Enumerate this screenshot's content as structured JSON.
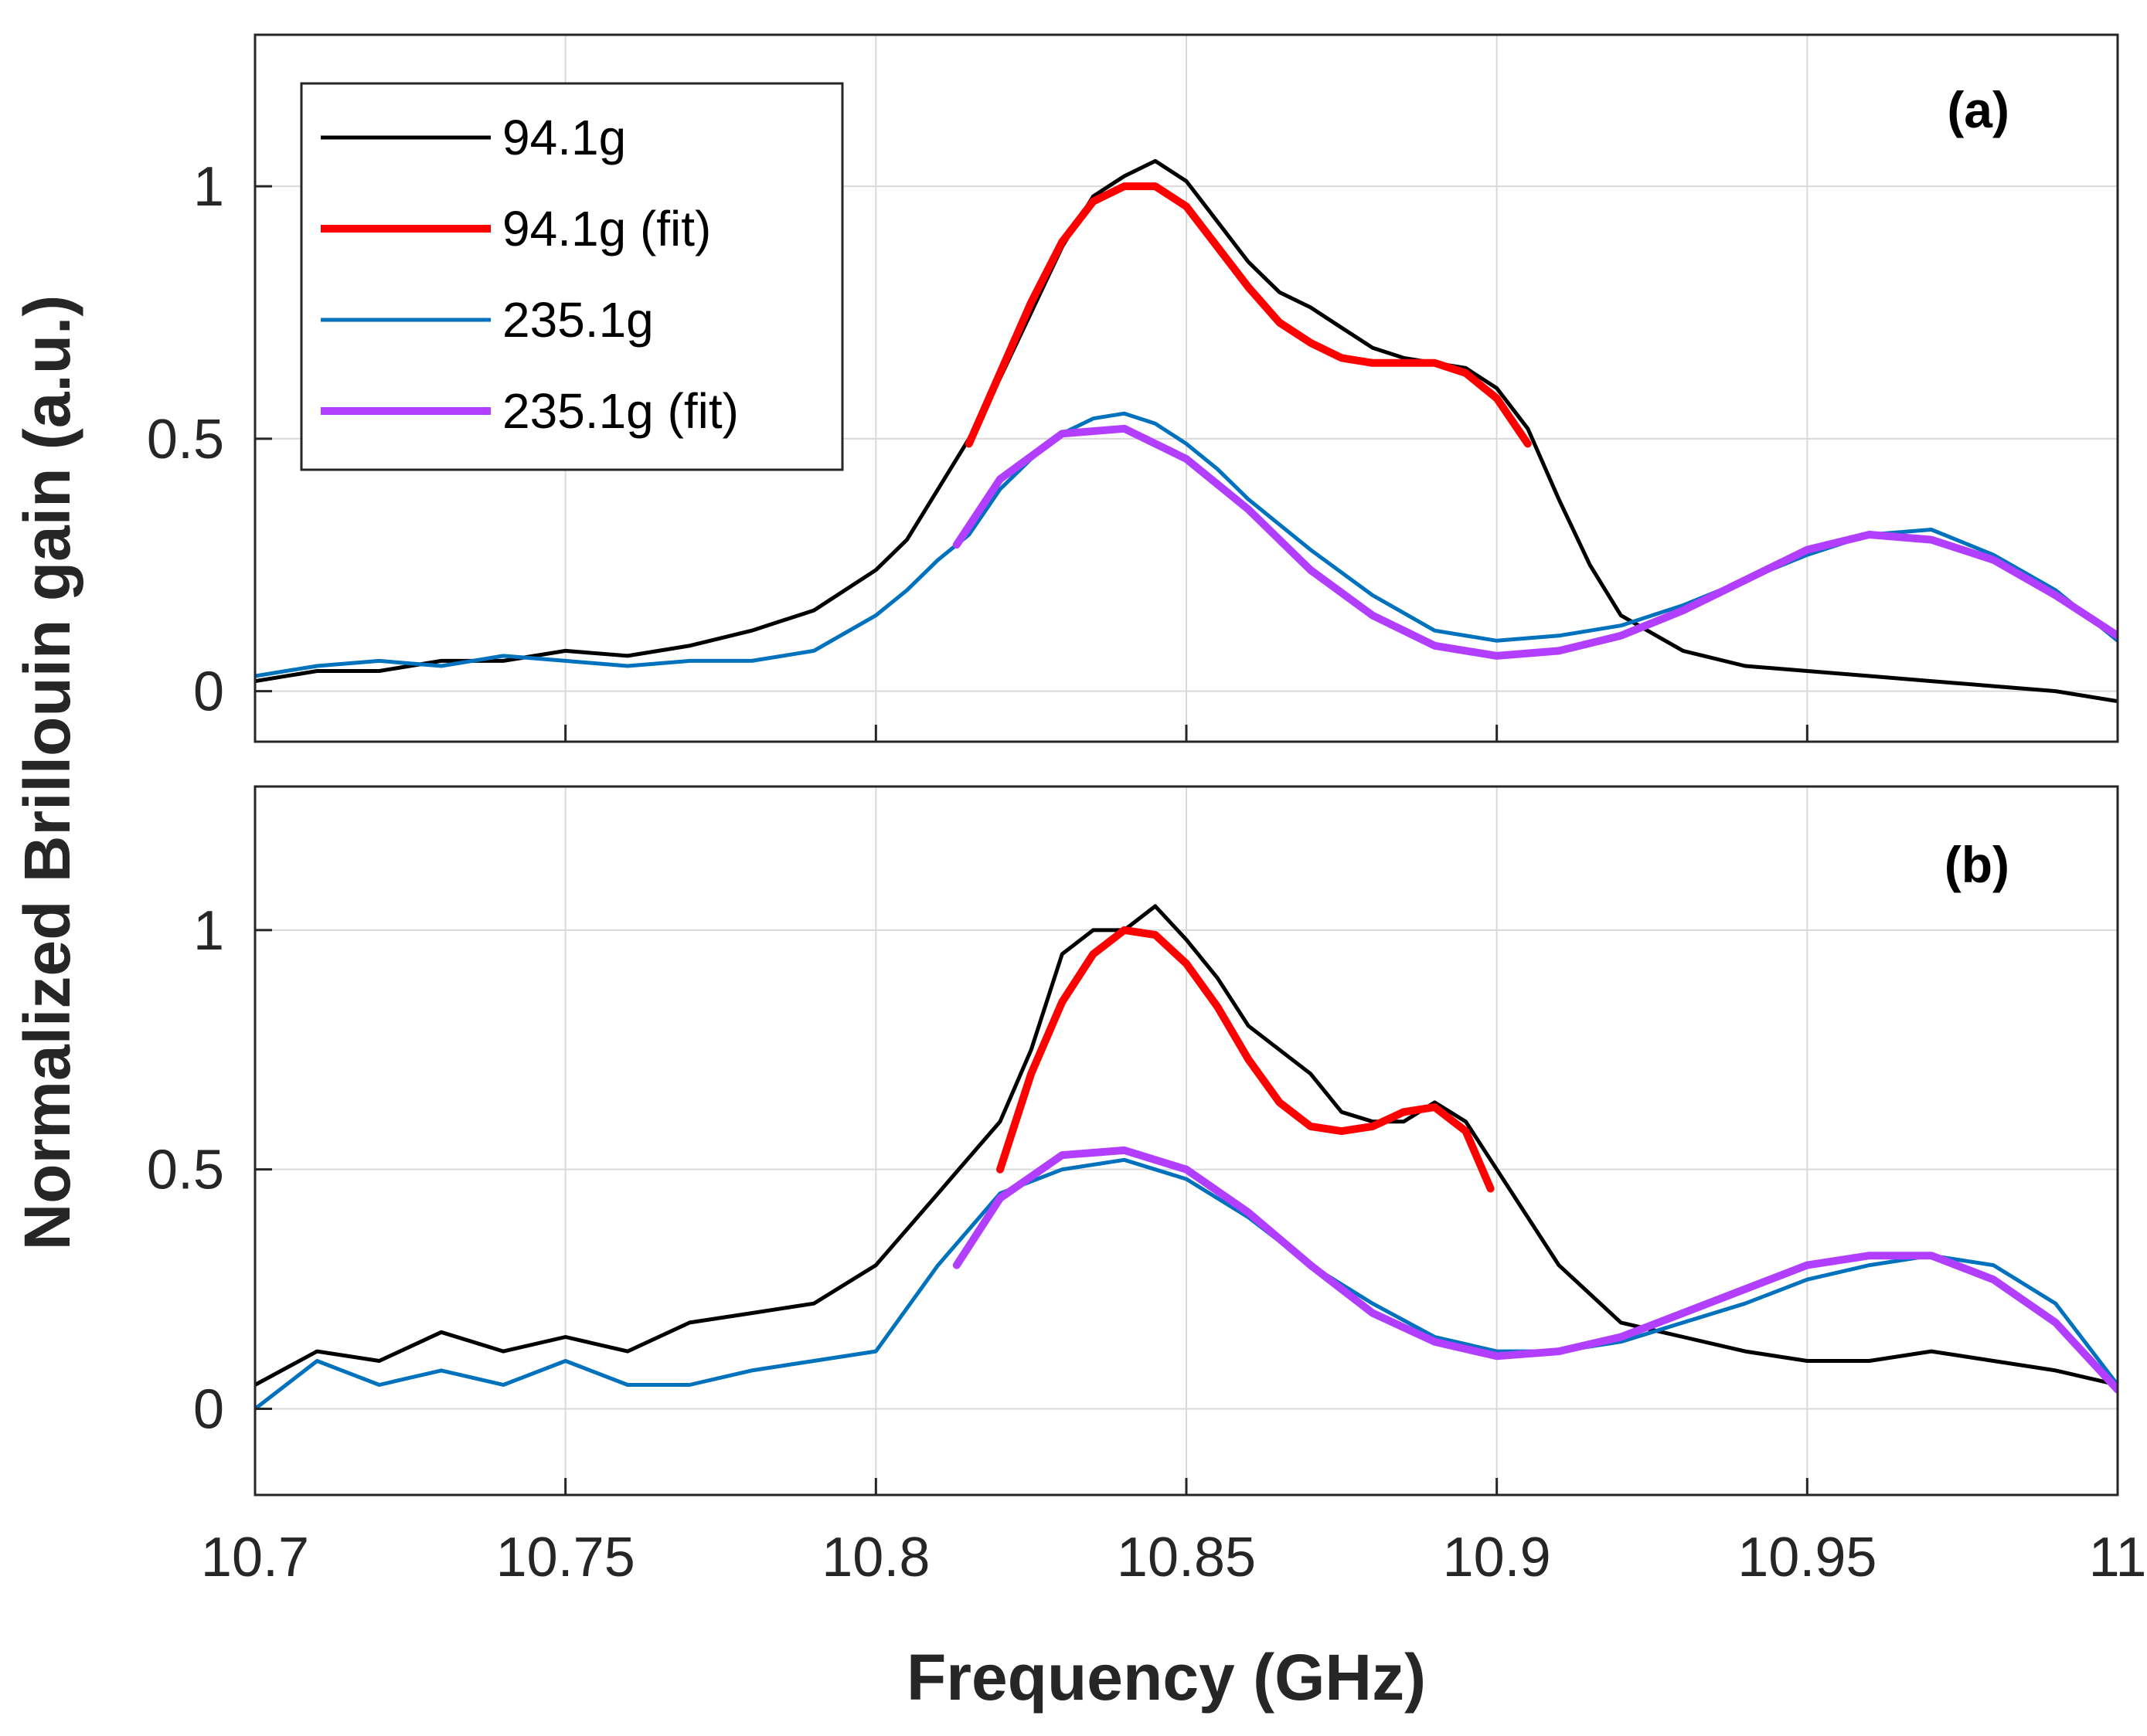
{
  "figure": {
    "ylabel": "Normalized Brillouin gain (a.u.)",
    "xlabel": "Frequency (GHz)"
  },
  "legend": {
    "entries": [
      {
        "label": "94.1g",
        "color": "#000000",
        "thick": false
      },
      {
        "label": "94.1g (fit)",
        "color": "#ff0000",
        "thick": true
      },
      {
        "label": "235.1g",
        "color": "#0072bd",
        "thick": false
      },
      {
        "label": "235.1g (fit)",
        "color": "#b23fff",
        "thick": true
      }
    ]
  },
  "colors": {
    "black": "#000000",
    "red": "#ff0000",
    "blue": "#0072bd",
    "purple": "#b23fff",
    "grid": "#d9d9d9",
    "axis": "#262626"
  },
  "chart_data": [
    {
      "type": "line",
      "panel": "(a)",
      "xlim": [
        10.7,
        11.0
      ],
      "ylim": [
        -0.1,
        1.3
      ],
      "xticks": [
        10.7,
        10.75,
        10.8,
        10.85,
        10.9,
        10.95,
        11.0
      ],
      "xtick_labels": [
        "10.7",
        "10.75",
        "10.8",
        "10.85",
        "10.9",
        "10.95",
        "11"
      ],
      "yticks": [
        0,
        0.5,
        1
      ],
      "ytick_labels": [
        "0",
        "0.5",
        "1"
      ],
      "grid": true,
      "series": [
        {
          "name": "94.1g",
          "color": "#000000",
          "x": [
            10.7,
            10.71,
            10.72,
            10.73,
            10.74,
            10.75,
            10.76,
            10.77,
            10.78,
            10.79,
            10.8,
            10.805,
            10.81,
            10.815,
            10.82,
            10.825,
            10.83,
            10.835,
            10.84,
            10.845,
            10.85,
            10.855,
            10.86,
            10.865,
            10.87,
            10.875,
            10.88,
            10.885,
            10.89,
            10.895,
            10.9,
            10.905,
            10.91,
            10.915,
            10.92,
            10.93,
            10.94,
            10.95,
            10.96,
            10.97,
            10.98,
            10.99,
            11.0
          ],
          "y": [
            0.02,
            0.04,
            0.04,
            0.06,
            0.06,
            0.08,
            0.07,
            0.09,
            0.12,
            0.16,
            0.24,
            0.3,
            0.4,
            0.5,
            0.62,
            0.75,
            0.88,
            0.98,
            1.02,
            1.05,
            1.01,
            0.93,
            0.85,
            0.79,
            0.76,
            0.72,
            0.68,
            0.66,
            0.65,
            0.64,
            0.6,
            0.52,
            0.38,
            0.25,
            0.15,
            0.08,
            0.05,
            0.04,
            0.03,
            0.02,
            0.01,
            0.0,
            -0.02
          ]
        },
        {
          "name": "94.1g (fit)",
          "color": "#ff0000",
          "x": [
            10.815,
            10.82,
            10.825,
            10.83,
            10.835,
            10.84,
            10.845,
            10.85,
            10.855,
            10.86,
            10.865,
            10.87,
            10.875,
            10.88,
            10.885,
            10.89,
            10.895,
            10.9,
            10.905
          ],
          "y": [
            0.49,
            0.63,
            0.77,
            0.89,
            0.97,
            1.0,
            1.0,
            0.96,
            0.88,
            0.8,
            0.73,
            0.69,
            0.66,
            0.65,
            0.65,
            0.65,
            0.63,
            0.58,
            0.49
          ]
        },
        {
          "name": "235.1g",
          "color": "#0072bd",
          "x": [
            10.7,
            10.71,
            10.72,
            10.73,
            10.74,
            10.75,
            10.76,
            10.77,
            10.78,
            10.79,
            10.8,
            10.805,
            10.81,
            10.815,
            10.82,
            10.825,
            10.83,
            10.835,
            10.84,
            10.845,
            10.85,
            10.855,
            10.86,
            10.87,
            10.88,
            10.89,
            10.9,
            10.91,
            10.92,
            10.93,
            10.94,
            10.95,
            10.96,
            10.97,
            10.98,
            10.99,
            11.0
          ],
          "y": [
            0.03,
            0.05,
            0.06,
            0.05,
            0.07,
            0.06,
            0.05,
            0.06,
            0.06,
            0.08,
            0.15,
            0.2,
            0.26,
            0.31,
            0.4,
            0.46,
            0.51,
            0.54,
            0.55,
            0.53,
            0.49,
            0.44,
            0.38,
            0.28,
            0.19,
            0.12,
            0.1,
            0.11,
            0.13,
            0.17,
            0.22,
            0.27,
            0.31,
            0.32,
            0.27,
            0.2,
            0.1
          ]
        },
        {
          "name": "235.1g (fit)",
          "color": "#b23fff",
          "x": [
            10.813,
            10.82,
            10.83,
            10.84,
            10.85,
            10.86,
            10.87,
            10.88,
            10.89,
            10.9,
            10.91,
            10.92,
            10.93,
            10.94,
            10.95,
            10.96,
            10.97,
            10.98,
            10.99,
            11.0
          ],
          "y": [
            0.29,
            0.42,
            0.51,
            0.52,
            0.46,
            0.36,
            0.24,
            0.15,
            0.09,
            0.07,
            0.08,
            0.11,
            0.16,
            0.22,
            0.28,
            0.31,
            0.3,
            0.26,
            0.19,
            0.11
          ]
        }
      ]
    },
    {
      "type": "line",
      "panel": "(b)",
      "xlim": [
        10.7,
        11.0
      ],
      "ylim": [
        -0.18,
        1.3
      ],
      "xticks": [
        10.7,
        10.75,
        10.8,
        10.85,
        10.9,
        10.95,
        11.0
      ],
      "xtick_labels": [
        "10.7",
        "10.75",
        "10.8",
        "10.85",
        "10.9",
        "10.95",
        "11"
      ],
      "yticks": [
        0,
        0.5,
        1
      ],
      "ytick_labels": [
        "0",
        "0.5",
        "1"
      ],
      "grid": true,
      "series": [
        {
          "name": "94.1g",
          "color": "#000000",
          "x": [
            10.7,
            10.71,
            10.72,
            10.73,
            10.74,
            10.75,
            10.76,
            10.77,
            10.78,
            10.79,
            10.8,
            10.81,
            10.82,
            10.825,
            10.83,
            10.835,
            10.84,
            10.845,
            10.85,
            10.855,
            10.86,
            10.865,
            10.87,
            10.875,
            10.88,
            10.885,
            10.89,
            10.895,
            10.9,
            10.905,
            10.91,
            10.92,
            10.93,
            10.94,
            10.95,
            10.96,
            10.97,
            10.98,
            10.99,
            11.0
          ],
          "y": [
            0.05,
            0.12,
            0.1,
            0.16,
            0.12,
            0.15,
            0.12,
            0.18,
            0.2,
            0.22,
            0.3,
            0.45,
            0.6,
            0.75,
            0.95,
            1.0,
            1.0,
            1.05,
            0.98,
            0.9,
            0.8,
            0.75,
            0.7,
            0.62,
            0.6,
            0.6,
            0.64,
            0.6,
            0.5,
            0.4,
            0.3,
            0.18,
            0.15,
            0.12,
            0.1,
            0.1,
            0.12,
            0.1,
            0.08,
            0.05
          ]
        },
        {
          "name": "94.1g (fit)",
          "color": "#ff0000",
          "x": [
            10.82,
            10.825,
            10.83,
            10.835,
            10.84,
            10.845,
            10.85,
            10.855,
            10.86,
            10.865,
            10.87,
            10.875,
            10.88,
            10.885,
            10.89,
            10.895,
            10.899
          ],
          "y": [
            0.5,
            0.7,
            0.85,
            0.95,
            1.0,
            0.99,
            0.93,
            0.84,
            0.73,
            0.64,
            0.59,
            0.58,
            0.59,
            0.62,
            0.63,
            0.58,
            0.46
          ]
        },
        {
          "name": "235.1g",
          "color": "#0072bd",
          "x": [
            10.7,
            10.71,
            10.72,
            10.73,
            10.74,
            10.75,
            10.76,
            10.77,
            10.78,
            10.79,
            10.8,
            10.81,
            10.82,
            10.83,
            10.84,
            10.85,
            10.86,
            10.87,
            10.88,
            10.89,
            10.9,
            10.91,
            10.92,
            10.93,
            10.94,
            10.95,
            10.96,
            10.97,
            10.98,
            10.99,
            11.0
          ],
          "y": [
            0.0,
            0.1,
            0.05,
            0.08,
            0.05,
            0.1,
            0.05,
            0.05,
            0.08,
            0.1,
            0.12,
            0.3,
            0.45,
            0.5,
            0.52,
            0.48,
            0.4,
            0.3,
            0.22,
            0.15,
            0.12,
            0.12,
            0.14,
            0.18,
            0.22,
            0.27,
            0.3,
            0.32,
            0.3,
            0.22,
            0.05
          ]
        },
        {
          "name": "235.1g (fit)",
          "color": "#b23fff",
          "x": [
            10.813,
            10.82,
            10.83,
            10.84,
            10.85,
            10.86,
            10.87,
            10.88,
            10.89,
            10.9,
            10.91,
            10.92,
            10.93,
            10.94,
            10.95,
            10.96,
            10.97,
            10.98,
            10.99,
            11.0
          ],
          "y": [
            0.3,
            0.44,
            0.53,
            0.54,
            0.5,
            0.41,
            0.3,
            0.2,
            0.14,
            0.11,
            0.12,
            0.15,
            0.2,
            0.25,
            0.3,
            0.32,
            0.32,
            0.27,
            0.18,
            0.04
          ]
        }
      ]
    }
  ]
}
